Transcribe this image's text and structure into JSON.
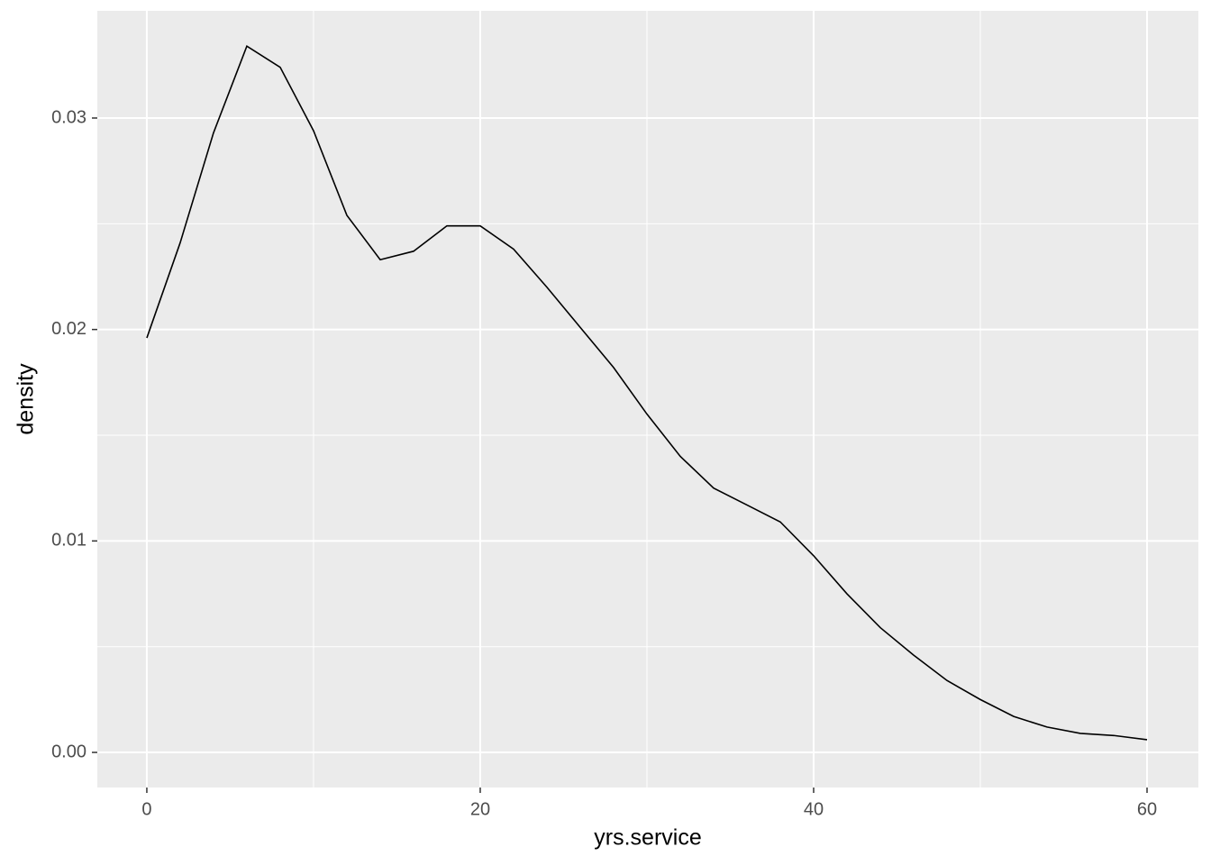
{
  "chart_data": {
    "type": "line",
    "x_label": "yrs.service",
    "y_label": "density",
    "x": [
      0,
      2,
      4,
      6,
      8,
      10,
      12,
      14,
      16,
      18,
      20,
      22,
      24,
      26,
      28,
      30,
      32,
      34,
      36,
      38,
      40,
      42,
      44,
      46,
      48,
      50,
      52,
      54,
      56,
      58,
      60
    ],
    "series": [
      {
        "color": "#000000",
        "values": [
          0.0196,
          0.0241,
          0.0293,
          0.0334,
          0.0324,
          0.0294,
          0.0254,
          0.0233,
          0.0237,
          0.0249,
          0.0249,
          0.0238,
          0.022,
          0.0201,
          0.0182,
          0.016,
          0.014,
          0.0125,
          0.0117,
          0.0109,
          0.0093,
          0.0075,
          0.0059,
          0.0046,
          0.0034,
          0.0025,
          0.0017,
          0.0012,
          0.0009,
          0.0008,
          0.0006
        ]
      }
    ],
    "xlim": [
      -2.97,
      63.08
    ],
    "ylim": [
      -0.00166,
      0.03507
    ],
    "xticks": [
      0,
      20,
      40,
      60
    ],
    "yticks": [
      {
        "value": 0,
        "label": "0.00"
      },
      0.01,
      0.02,
      0.03
    ],
    "x_minor_breaks": [
      10,
      30,
      50
    ],
    "y_minor_breaks": [
      0.005,
      0.015,
      0.025
    ],
    "grid": true
  }
}
